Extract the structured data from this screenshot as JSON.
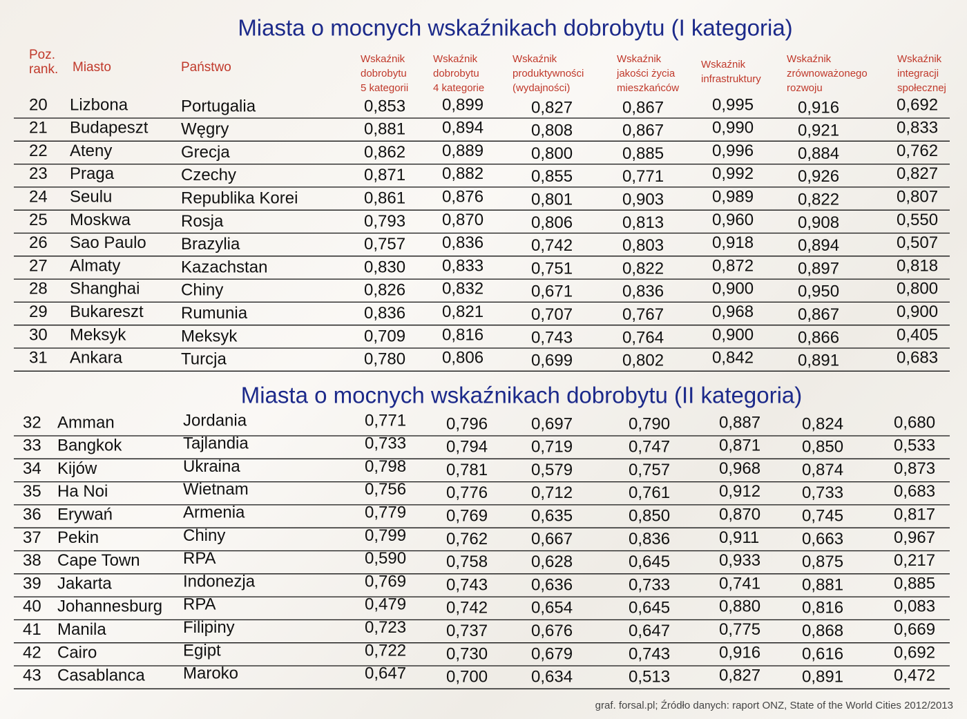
{
  "title": "Miasta o mocnych wskaźnikach dobrobytu (I kategoria)",
  "headers": [
    [
      "Poz.",
      "rank."
    ],
    [
      "Miasto"
    ],
    [
      "Państwo"
    ],
    [
      "Wskaźnik",
      "dobrobytu",
      "5 kategorii"
    ],
    [
      "Wskaźnik",
      "dobrobytu",
      "4 kategorie"
    ],
    [
      "Wskaźnik",
      "produktywności",
      "(wydajności)"
    ],
    [
      "Wskaźnik",
      "jakości życia",
      "mieszkańców"
    ],
    [
      "Wskaźnik",
      "infrastruktury"
    ],
    [
      "Wskaźnik",
      "zrównoważonego",
      "rozwoju"
    ],
    [
      "Wskaźnik",
      "integracji",
      "społecznej"
    ]
  ],
  "table1": {
    "rows": [
      [
        "20",
        "Lizbona",
        "Portugalia",
        "0,853",
        "0,899",
        "0,827",
        "0,867",
        "0,995",
        "0,916",
        "0,692"
      ],
      [
        "21",
        "Budapeszt",
        "Węgry",
        "0,881",
        "0,894",
        "0,808",
        "0,867",
        "0,990",
        "0,921",
        "0,833"
      ],
      [
        "22",
        "Ateny",
        "Grecja",
        "0,862",
        "0,889",
        "0,800",
        "0,885",
        "0,996",
        "0,884",
        "0,762"
      ],
      [
        "23",
        "Praga",
        "Czechy",
        "0,871",
        "0,882",
        "0,855",
        "0,771",
        "0,992",
        "0,926",
        "0,827"
      ],
      [
        "24",
        "Seulu",
        "Republika Korei",
        "0,861",
        "0,876",
        "0,801",
        "0,903",
        "0,989",
        "0,822",
        "0,807"
      ],
      [
        "25",
        "Moskwa",
        "Rosja",
        "0,793",
        "0,870",
        "0,806",
        "0,813",
        "0,960",
        "0,908",
        "0,550"
      ],
      [
        "26",
        "Sao Paulo",
        "Brazylia",
        "0,757",
        "0,836",
        "0,742",
        "0,803",
        "0,918",
        "0,894",
        "0,507"
      ],
      [
        "27",
        "Almaty",
        "Kazachstan",
        "0,830",
        "0,833",
        "0,751",
        "0,822",
        "0,872",
        "0,897",
        "0,818"
      ],
      [
        "28",
        "Shanghai",
        "Chiny",
        "0,826",
        "0,832",
        "0,671",
        "0,836",
        "0,900",
        "0,950",
        "0,800"
      ],
      [
        "29",
        "Bukareszt",
        "Rumunia",
        "0,836",
        "0,821",
        "0,707",
        "0,767",
        "0,968",
        "0,867",
        "0,900"
      ],
      [
        "30",
        "Meksyk",
        "Meksyk",
        "0,709",
        "0,816",
        "0,743",
        "0,764",
        "0,900",
        "0,866",
        "0,405"
      ],
      [
        "31",
        "Ankara",
        "Turcja",
        "0,780",
        "0,806",
        "0,699",
        "0,802",
        "0,842",
        "0,891",
        "0,683"
      ]
    ]
  },
  "title2": "Miasta o mocnych wskaźnikach dobrobytu (II kategoria)",
  "table2": {
    "rows": [
      [
        "32",
        "Amman",
        "Jordania",
        "0,771",
        "0,796",
        "0,697",
        "0,790",
        "0,887",
        "0,824",
        "0,680"
      ],
      [
        "33",
        "Bangkok",
        "Tajlandia",
        "0,733",
        "0,794",
        "0,719",
        "0,747",
        "0,871",
        "0,850",
        "0,533"
      ],
      [
        "34",
        "Kijów",
        "Ukraina",
        "0,798",
        "0,781",
        "0,579",
        "0,757",
        "0,968",
        "0,874",
        "0,873"
      ],
      [
        "35",
        "Ha Noi",
        "Wietnam",
        "0,756",
        "0,776",
        "0,712",
        "0,761",
        "0,912",
        "0,733",
        "0,683"
      ],
      [
        "36",
        "Erywań",
        "Armenia",
        "0,779",
        "0,769",
        "0,635",
        "0,850",
        "0,870",
        "0,745",
        "0,817"
      ],
      [
        "37",
        "Pekin",
        "Chiny",
        "0,799",
        "0,762",
        "0,667",
        "0,836",
        "0,911",
        "0,663",
        "0,967"
      ],
      [
        "38",
        "Cape Town",
        "RPA",
        "0,590",
        "0,758",
        "0,628",
        "0,645",
        "0,933",
        "0,875",
        "0,217"
      ],
      [
        "39",
        "Jakarta",
        "Indonezja",
        "0,769",
        "0,743",
        "0,636",
        "0,733",
        "0,741",
        "0,881",
        "0,885"
      ],
      [
        "40",
        "Johannesburg",
        "RPA",
        "0,479",
        "0,742",
        "0,654",
        "0,645",
        "0,880",
        "0,816",
        "0,083"
      ],
      [
        "41",
        "Manila",
        "Filipiny",
        "0,723",
        "0,737",
        "0,676",
        "0,647",
        "0,775",
        "0,868",
        "0,669"
      ],
      [
        "42",
        "Cairo",
        "Egipt",
        "0,722",
        "0,730",
        "0,679",
        "0,743",
        "0,916",
        "0,616",
        "0,692"
      ],
      [
        "43",
        "Casablanca",
        "Maroko",
        "0,647",
        "0,700",
        "0,634",
        "0,513",
        "0,827",
        "0,891",
        "0,472"
      ]
    ]
  },
  "source": "graf. forsal.pl; Źródło danych: raport ONZ, State of the World Cities 2012/2013"
}
